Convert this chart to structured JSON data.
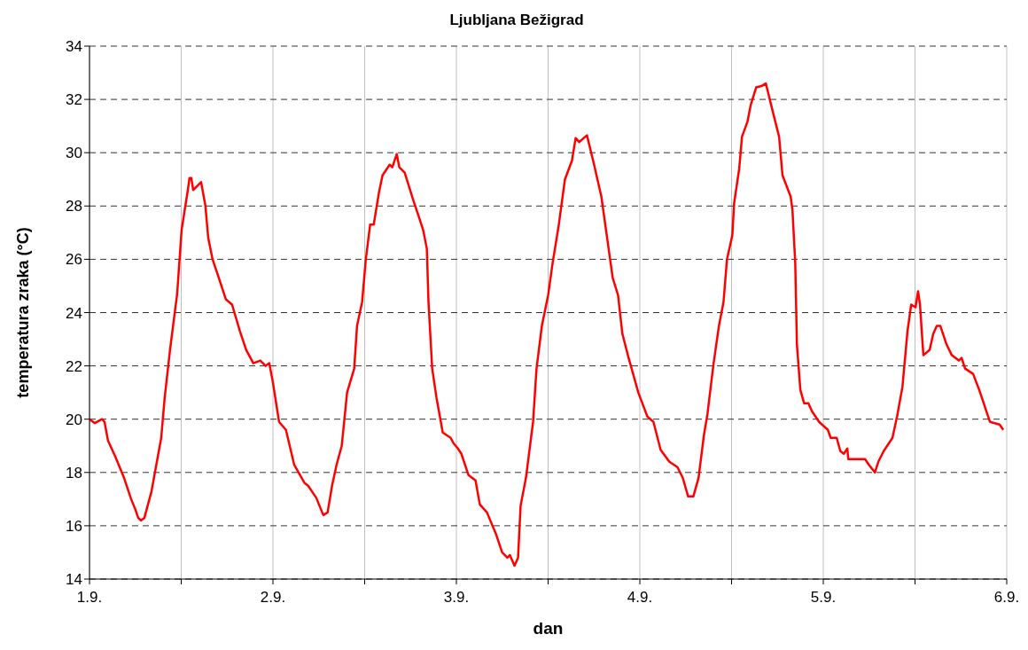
{
  "chart_data": {
    "type": "line",
    "title": "Ljubljana Bežigrad",
    "xlabel": "dan",
    "ylabel": "temperatura zraka (°C)",
    "x": [
      "--09-01T00:00",
      "--09-01T00:42",
      "--09-01T01:38",
      "--09-01T01:58",
      "--09-01T02:25",
      "--09-01T03:22",
      "--09-01T04:31",
      "--09-01T05:27",
      "--09-01T06:01",
      "--09-01T06:22",
      "--09-01T06:43",
      "--09-01T07:11",
      "--09-01T08:07",
      "--09-01T09:23",
      "--09-01T09:50",
      "--09-01T10:32",
      "--09-01T11:28",
      "--09-01T12:03",
      "--09-01T12:52",
      "--09-01T13:05",
      "--09-01T13:19",
      "--09-01T13:34",
      "--09-01T14:36",
      "--09-01T15:10",
      "--09-01T15:32",
      "--09-01T16:06",
      "--09-01T16:55",
      "--09-01T17:50",
      "--09-01T18:39",
      "--09-01T19:41",
      "--09-01T20:30",
      "--09-01T21:26",
      "--09-01T22:21",
      "--09-01T23:02",
      "--09-01T23:31",
      "--09-01T23:59",
      "--09-02T00:48",
      "--09-02T01:42",
      "--09-02T02:46",
      "--09-02T04:09",
      "--09-02T04:36",
      "--09-02T05:40",
      "--09-02T06:35",
      "--09-02T07:09",
      "--09-02T07:44",
      "--09-02T08:20",
      "--09-02T09:00",
      "--09-02T09:42",
      "--09-02T10:38",
      "--09-02T11:00",
      "--09-02T11:40",
      "--09-02T12:09",
      "--09-02T12:43",
      "--09-02T13:11",
      "--09-02T13:52",
      "--09-02T14:20",
      "--09-02T15:16",
      "--09-02T15:37",
      "--09-02T16:12",
      "--09-02T16:32",
      "--09-02T17:14",
      "--09-02T18:23",
      "--09-02T19:05",
      "--09-02T19:39",
      "--09-02T20:08",
      "--09-02T20:21",
      "--09-02T20:50",
      "--09-02T21:24",
      "--09-02T22:13",
      "--09-02T23:15",
      "--09-02T23:37",
      "--09-03T00:12",
      "--09-03T00:39",
      "--09-03T01:35",
      "--09-03T02:30",
      "--09-03T03:04",
      "--09-03T04:00",
      "--09-03T05:10",
      "--09-03T05:59",
      "--09-03T06:40",
      "--09-03T07:00",
      "--09-03T07:36",
      "--09-03T08:04",
      "--09-03T08:24",
      "--09-03T09:06",
      "--09-03T10:02",
      "--09-03T10:29",
      "--09-03T11:11",
      "--09-03T12:00",
      "--09-03T12:35",
      "--09-03T13:24",
      "--09-03T14:12",
      "--09-03T15:07",
      "--09-03T15:36",
      "--09-03T16:03",
      "--09-03T17:05",
      "--09-03T18:01",
      "--09-03T18:58",
      "--09-03T19:52",
      "--09-03T20:27",
      "--09-03T21:09",
      "--09-03T21:43",
      "--09-03T22:32",
      "--09-03T23:48",
      "--09-04T00:59",
      "--09-04T01:47",
      "--09-04T02:43",
      "--09-04T03:52",
      "--09-04T04:55",
      "--09-04T05:37",
      "--09-04T06:19",
      "--09-04T07:00",
      "--09-04T07:41",
      "--09-04T08:23",
      "--09-04T08:51",
      "--09-04T09:39",
      "--09-04T10:21",
      "--09-04T10:57",
      "--09-04T11:24",
      "--09-04T12:06",
      "--09-04T12:20",
      "--09-04T13:00",
      "--09-04T13:22",
      "--09-04T14:04",
      "--09-04T14:31",
      "--09-04T15:13",
      "--09-04T15:55",
      "--09-04T16:29",
      "--09-04T17:18",
      "--09-04T18:13",
      "--09-04T18:40",
      "--09-04T19:44",
      "--09-04T19:58",
      "--09-04T20:20",
      "--09-04T20:33",
      "--09-04T21:00",
      "--09-04T21:29",
      "--09-04T22:03",
      "--09-04T22:31",
      "--09-04T23:27",
      "--09-05T00:36",
      "--09-05T00:58",
      "--09-05T01:45",
      "--09-05T02:14",
      "--09-05T02:41",
      "--09-05T03:09",
      "--09-05T03:16",
      "--09-05T05:28",
      "--09-05T05:56",
      "--09-05T06:45",
      "--09-05T07:12",
      "--09-05T07:54",
      "--09-05T09:03",
      "--09-05T09:39",
      "--09-05T10:21",
      "--09-05T11:01",
      "--09-05T11:30",
      "--09-05T12:04",
      "--09-05T12:24",
      "--09-05T12:39",
      "--09-05T13:00",
      "--09-05T13:06",
      "--09-05T13:55",
      "--09-05T14:23",
      "--09-05T14:51",
      "--09-05T15:19",
      "--09-05T16:08",
      "--09-05T16:49",
      "--09-05T17:44",
      "--09-05T18:06",
      "--09-05T18:33",
      "--09-05T19:36",
      "--09-05T20:24",
      "--09-05T21:13",
      "--09-05T21:48",
      "--09-05T23:04",
      "--09-05T23:33"
    ],
    "series": [
      {
        "color": "#ff0000",
        "values": [
          20.0,
          19.85,
          20.0,
          19.9,
          19.2,
          18.6,
          17.8,
          17.0,
          16.6,
          16.3,
          16.2,
          16.3,
          17.3,
          19.3,
          20.8,
          22.6,
          24.7,
          27.1,
          28.6,
          29.05,
          29.05,
          28.6,
          28.9,
          28.0,
          26.8,
          26.0,
          25.3,
          24.5,
          24.3,
          23.3,
          22.6,
          22.1,
          22.2,
          22.0,
          22.1,
          21.4,
          19.9,
          19.6,
          18.3,
          17.6,
          17.5,
          17.05,
          16.4,
          16.5,
          17.5,
          18.3,
          19.0,
          21.0,
          21.9,
          23.5,
          24.4,
          26.0,
          27.3,
          27.3,
          28.5,
          29.15,
          29.55,
          29.45,
          29.95,
          29.45,
          29.25,
          28.2,
          27.6,
          27.1,
          26.4,
          24.4,
          21.9,
          20.8,
          19.5,
          19.3,
          19.1,
          18.9,
          18.7,
          17.9,
          17.7,
          16.8,
          16.5,
          15.7,
          15.0,
          14.8,
          14.9,
          14.5,
          14.8,
          16.75,
          17.8,
          19.9,
          21.9,
          23.5,
          24.65,
          25.85,
          27.3,
          29.0,
          29.7,
          30.55,
          30.4,
          30.65,
          29.55,
          28.35,
          26.5,
          25.3,
          24.65,
          23.2,
          22.3,
          21.0,
          20.1,
          19.9,
          18.85,
          18.4,
          18.2,
          17.8,
          17.1,
          17.1,
          17.8,
          19.4,
          20.2,
          22.1,
          23.5,
          24.4,
          26.0,
          26.9,
          28.1,
          29.4,
          30.6,
          31.15,
          31.8,
          32.45,
          32.5,
          32.6,
          31.65,
          30.6,
          29.15,
          28.35,
          27.85,
          25.85,
          22.8,
          21.1,
          20.6,
          20.6,
          20.3,
          19.9,
          19.6,
          19.3,
          19.3,
          18.8,
          18.7,
          18.9,
          18.5,
          18.5,
          18.3,
          18.0,
          18.4,
          18.8,
          19.3,
          20.1,
          21.2,
          23.3,
          24.3,
          24.2,
          24.8,
          24.3,
          22.8,
          22.4,
          22.6,
          23.2,
          23.5,
          23.5,
          22.8,
          22.4,
          22.2,
          22.3,
          21.9,
          21.7,
          21.1,
          20.4,
          19.9,
          19.8,
          19.6
        ]
      }
    ],
    "xlim": [
      "--09-01",
      "--09-06"
    ],
    "xticks": [
      {
        "value": "--09-01",
        "label": "1.9."
      },
      {
        "value": "--09-01T12:00",
        "label": null
      },
      {
        "value": "--09-02",
        "label": "2.9."
      },
      {
        "value": "--09-02T12:00",
        "label": null
      },
      {
        "value": "--09-03",
        "label": "3.9."
      },
      {
        "value": "--09-03T12:00",
        "label": null
      },
      {
        "value": "--09-04",
        "label": "4.9."
      },
      {
        "value": "--09-04T12:00",
        "label": null
      },
      {
        "value": "--09-05",
        "label": "5.9."
      },
      {
        "value": "--09-05T12:00",
        "label": null
      },
      {
        "value": "--09-06",
        "label": "6.9."
      }
    ],
    "ylim": [
      14,
      34
    ],
    "yticks": [
      14,
      16,
      18,
      20,
      22,
      24,
      26,
      28,
      30,
      32,
      34
    ],
    "grid": true,
    "marker": "none",
    "line_style": "solid"
  }
}
